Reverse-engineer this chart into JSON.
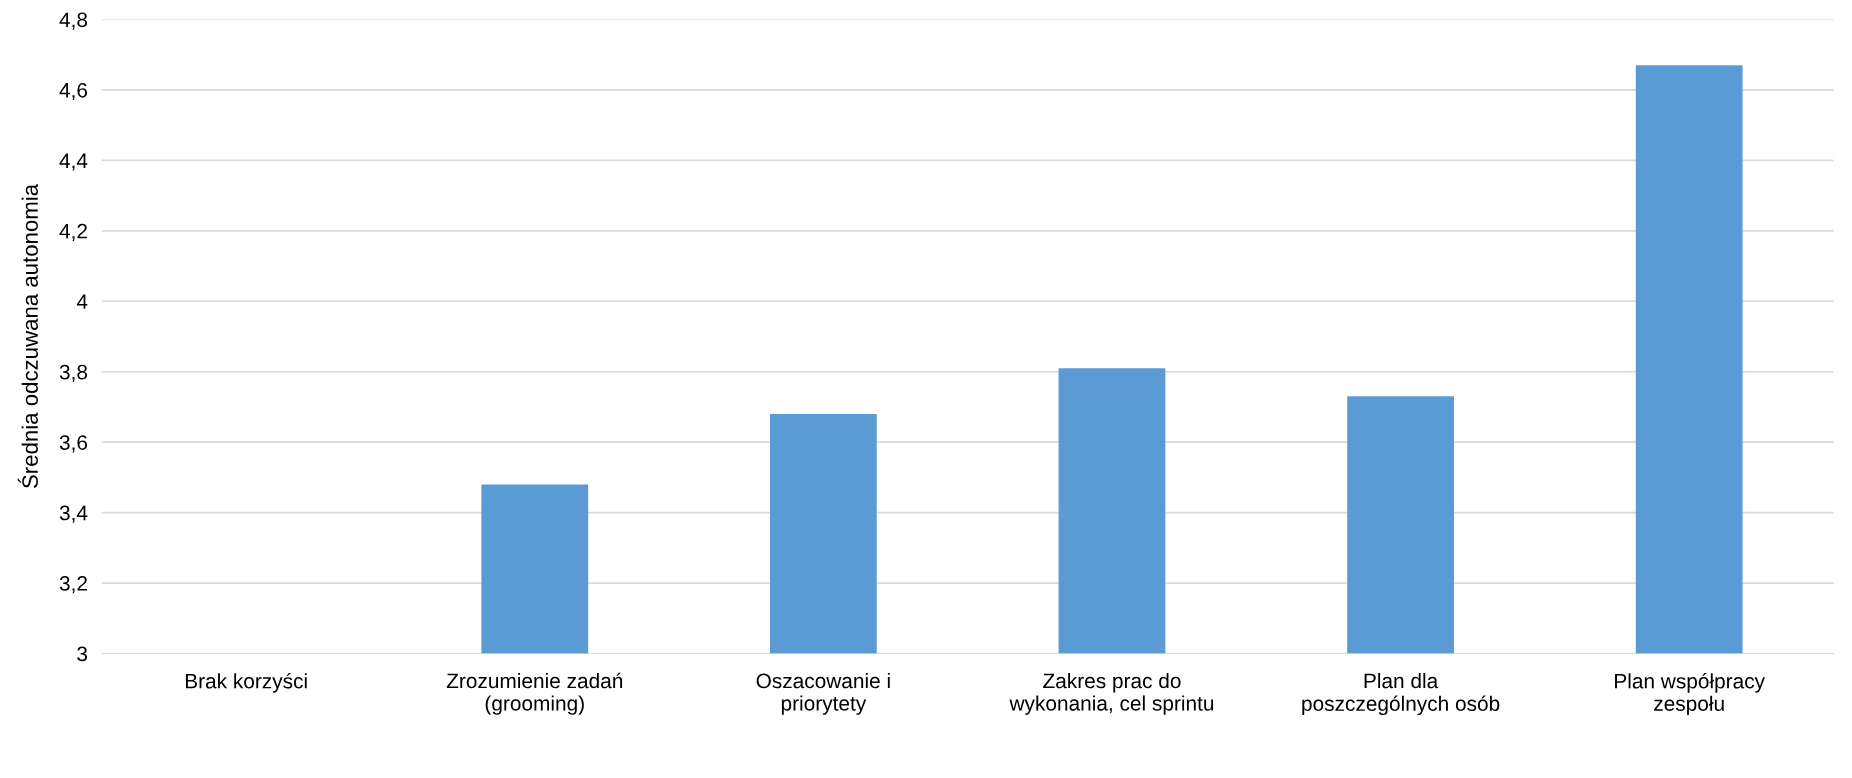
{
  "chart_data": {
    "type": "bar",
    "ylabel": "Średnia odczuwana autonomia",
    "categories": [
      "Brak korzyści",
      "Zrozumienie zadań\n(grooming)",
      "Oszacowanie i\npriorytety",
      "Zakres prac do\nwykonania, cel sprintu",
      "Plan dla\nposzczególnych osób",
      "Plan współpracy\nzespołu"
    ],
    "values": [
      null,
      3.48,
      3.68,
      3.81,
      3.73,
      4.67
    ],
    "color": "#5b9bd5",
    "ylim": [
      3,
      4.8
    ],
    "yticks": [
      3,
      {
        "value": 3.2,
        "label": "3,2"
      },
      {
        "value": 3.4,
        "label": "3,4"
      },
      {
        "value": 3.6,
        "label": "3,6"
      },
      {
        "value": 3.8,
        "label": "3,8"
      },
      4,
      {
        "value": 4.2,
        "label": "4,2"
      },
      {
        "value": 4.4,
        "label": "4,4"
      },
      {
        "value": 4.6,
        "label": "4,6"
      },
      {
        "value": 4.8,
        "label": "4,8"
      }
    ],
    "grid": "y"
  }
}
